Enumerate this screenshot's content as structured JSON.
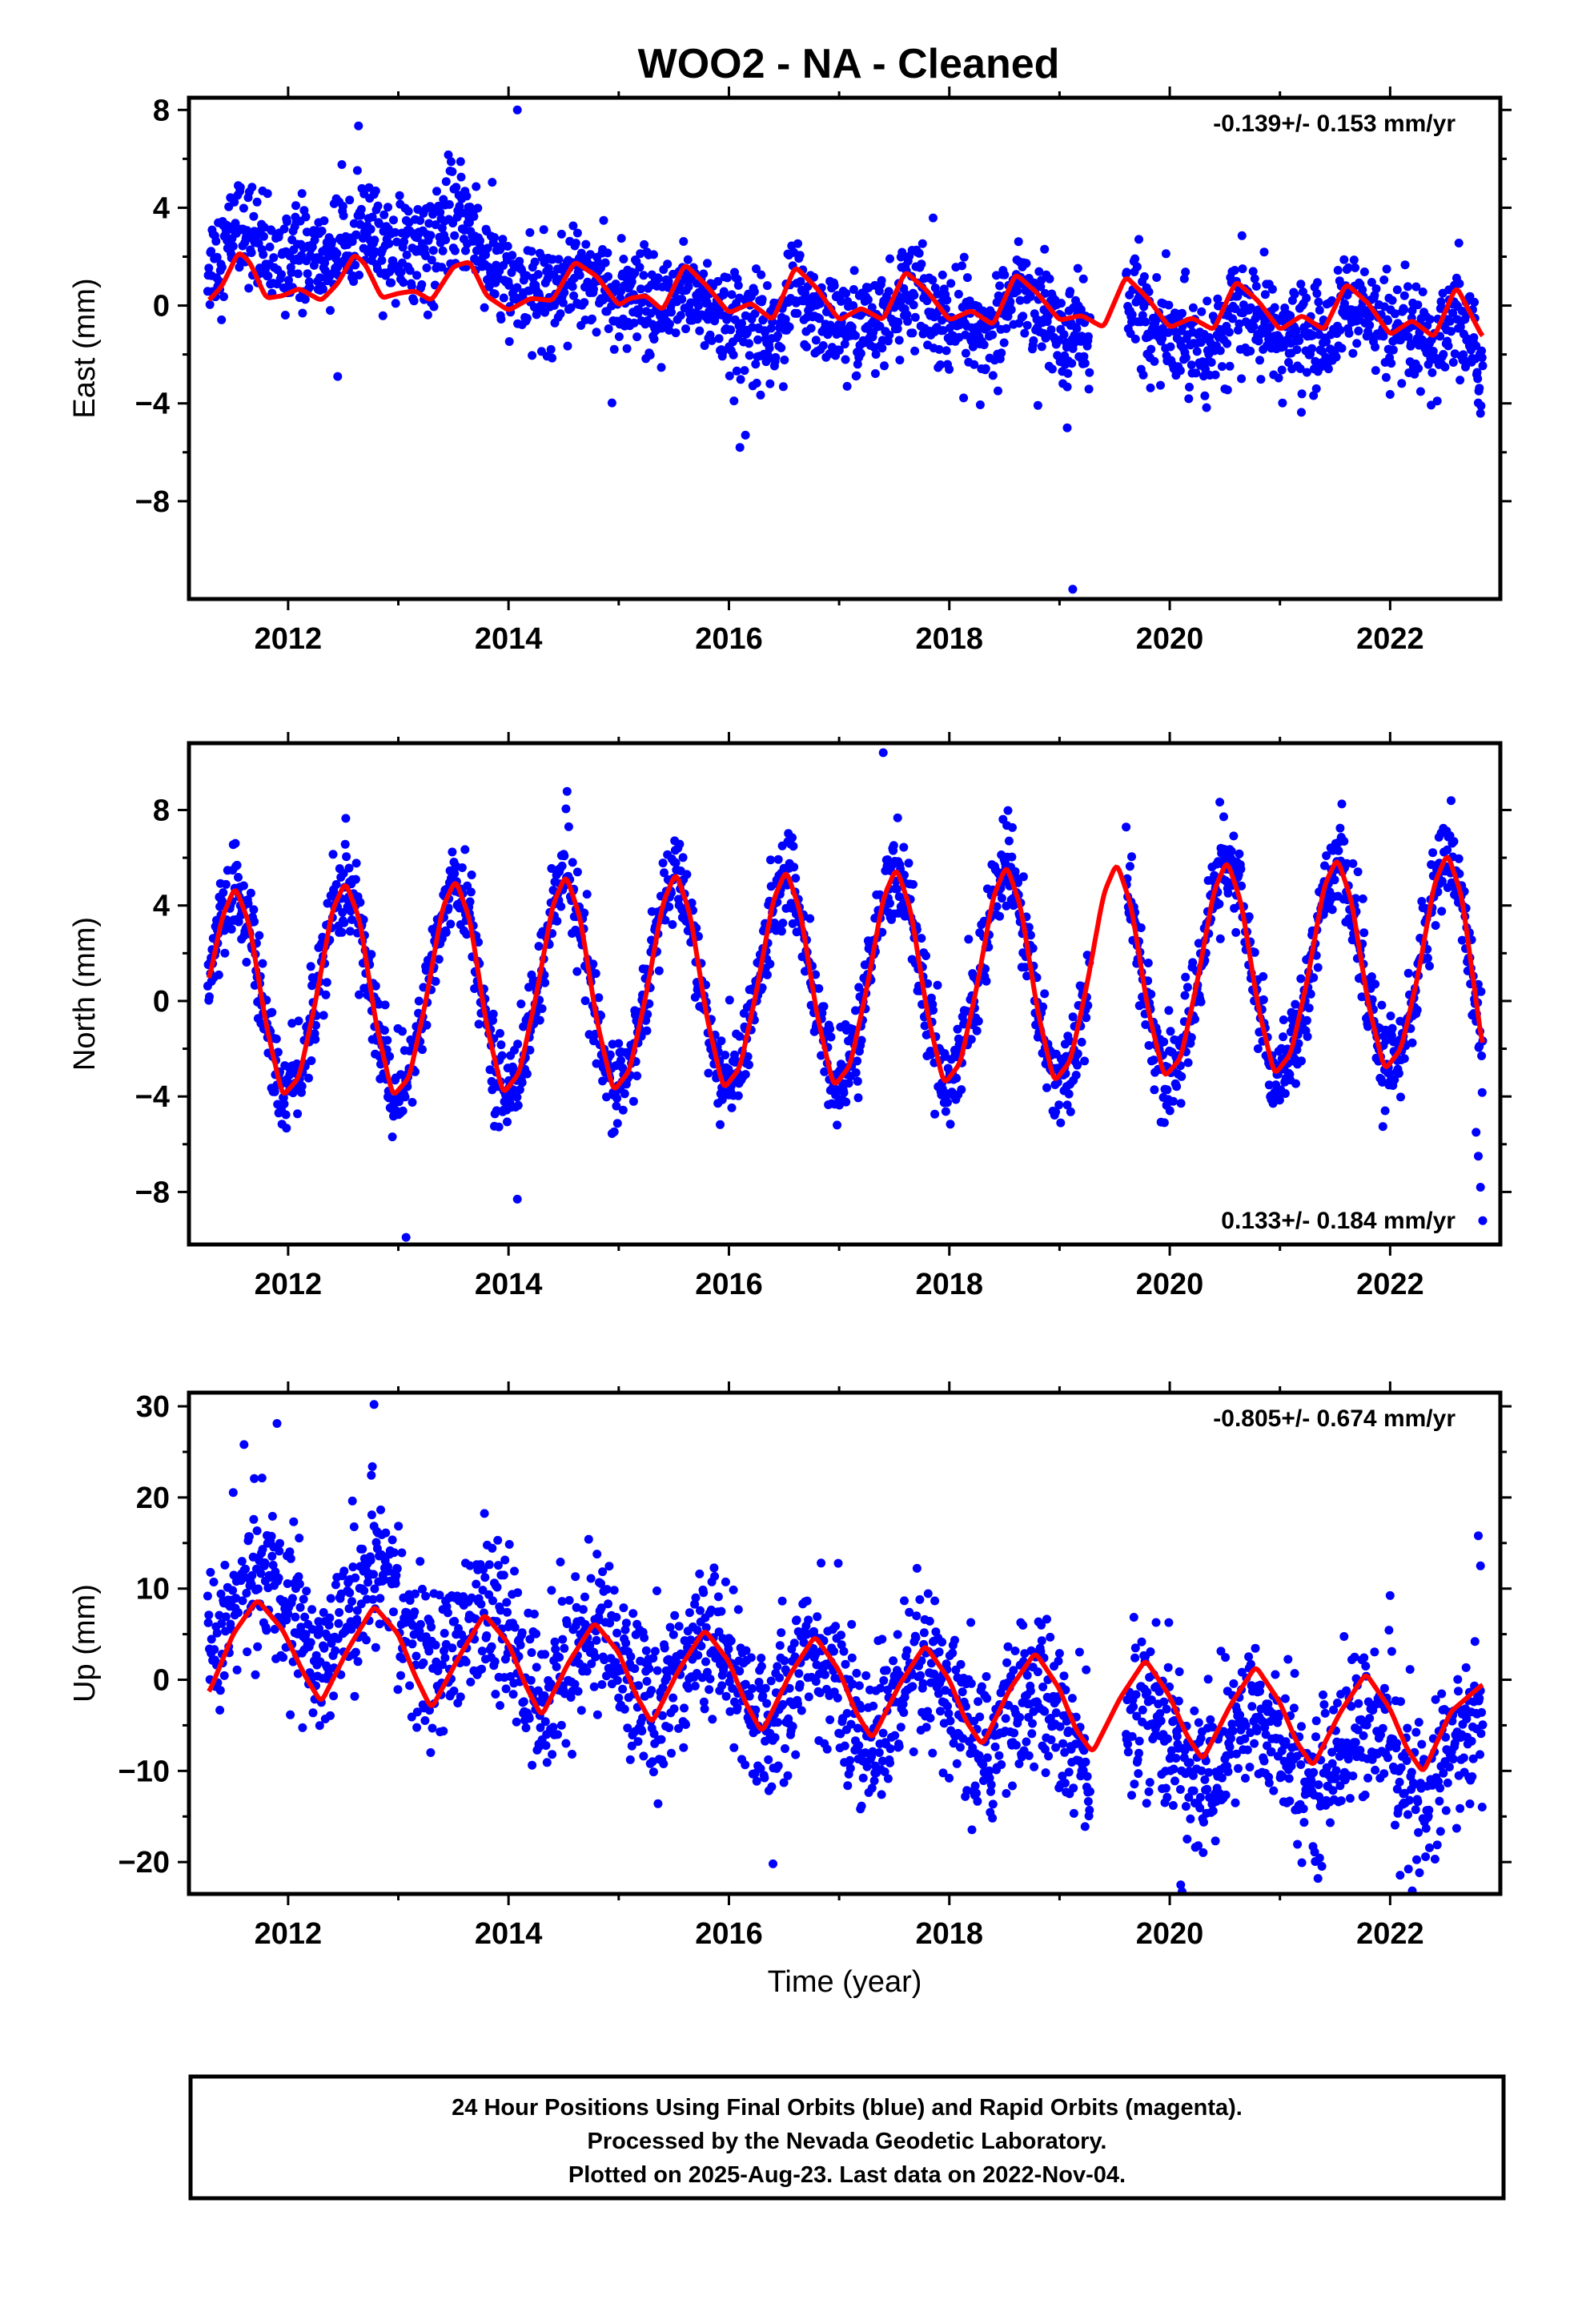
{
  "title": "WOO2  - NA - Cleaned",
  "colors": {
    "points": "#0000ff",
    "model": "#ff0000",
    "frame": "#000000"
  },
  "footer": {
    "line1": "24 Hour Positions Using Final Orbits (blue) and Rapid Orbits (magenta).",
    "line2": "Processed by the Nevada Geodetic Laboratory.",
    "line3": "Plotted on 2025-Aug-23. Last data on 2022-Nov-04."
  },
  "chart_data": [
    {
      "type": "scatter",
      "name": "east-panel",
      "ylabel": "East (mm)",
      "xlabel": "",
      "rate_label": "-0.139+/- 0.153 mm/yr",
      "rate_position": "top-right",
      "xlim": [
        2011.1,
        2023.0
      ],
      "ylim": [
        -12,
        8.5
      ],
      "xticks": [
        2012,
        2014,
        2016,
        2018,
        2020,
        2022
      ],
      "xtick_labels": [
        "2012",
        "2014",
        "2016",
        "2018",
        "2020",
        "2022"
      ],
      "yticks": [
        8,
        4,
        0,
        -4,
        -8
      ],
      "ytick_labels": [
        "8",
        "4",
        "0",
        "−4",
        "−8"
      ],
      "data_start": 2011.27,
      "data_end": 2022.84,
      "gap": [
        2019.28,
        2019.6
      ],
      "series": [
        {
          "name": "",
          "kind": "points",
          "color": "#0000ff",
          "trend": [
            [
              2011.3,
              1.5
            ],
            [
              2012.5,
              1.6
            ],
            [
              2013.5,
              2.3
            ],
            [
              2014.2,
              0.5
            ],
            [
              2015.5,
              -0.5
            ],
            [
              2016.5,
              -0.8
            ],
            [
              2018.0,
              -0.3
            ],
            [
              2019.0,
              -0.6
            ],
            [
              2020.5,
              -0.9
            ],
            [
              2022.0,
              -0.5
            ],
            [
              2022.84,
              -1.5
            ]
          ],
          "scatter_sd": 1.05
        },
        {
          "name": "",
          "kind": "model",
          "color": "#ff0000",
          "x": [
            2011.28,
            2011.4,
            2011.55,
            2011.65,
            2011.8,
            2011.95,
            2012.1,
            2012.3,
            2012.45,
            2012.6,
            2012.7,
            2012.85,
            2013.0,
            2013.15,
            2013.3,
            2013.5,
            2013.65,
            2013.8,
            2014.0,
            2014.2,
            2014.4,
            2014.6,
            2014.8,
            2015.0,
            2015.1,
            2015.25,
            2015.4,
            2015.6,
            2015.8,
            2016.0,
            2016.2,
            2016.4,
            2016.6,
            2016.8,
            2017.0,
            2017.2,
            2017.4,
            2017.6,
            2017.8,
            2018.0,
            2018.2,
            2018.4,
            2018.6,
            2018.8,
            2019.0,
            2019.2,
            2019.4,
            2019.6,
            2019.8,
            2020.0,
            2020.2,
            2020.4,
            2020.6,
            2020.8,
            2021.0,
            2021.2,
            2021.4,
            2021.6,
            2021.8,
            2022.0,
            2022.2,
            2022.4,
            2022.6,
            2022.84
          ],
          "y": [
            0.2,
            0.8,
            2.2,
            1.8,
            0.3,
            0.4,
            0.7,
            0.2,
            0.9,
            2.1,
            1.7,
            0.3,
            0.5,
            0.6,
            0.2,
            1.6,
            1.8,
            0.4,
            -0.2,
            0.3,
            0.2,
            1.8,
            1.2,
            0.0,
            0.3,
            0.4,
            -0.2,
            1.7,
            0.8,
            -0.3,
            0.1,
            -0.6,
            1.6,
            0.7,
            -0.6,
            -0.1,
            -0.6,
            1.4,
            0.6,
            -0.6,
            -0.2,
            -0.8,
            1.3,
            0.5,
            -0.6,
            -0.4,
            -0.9,
            1.2,
            0.3,
            -0.9,
            -0.5,
            -1.0,
            1.0,
            0.2,
            -1.0,
            -0.4,
            -1.0,
            0.9,
            0.1,
            -1.2,
            -0.6,
            -1.3,
            0.8,
            -1.3
          ]
        }
      ],
      "outliers": [
        [
          2014.08,
          8.0
        ],
        [
          2019.12,
          -11.6
        ],
        [
          2019.07,
          -5.0
        ],
        [
          2016.1,
          -5.8
        ],
        [
          2016.15,
          -5.3
        ],
        [
          2012.45,
          -2.9
        ]
      ]
    },
    {
      "type": "scatter",
      "name": "north-panel",
      "ylabel": "North (mm)",
      "xlabel": "",
      "rate_label": "0.133+/- 0.184 mm/yr",
      "rate_position": "bottom-right",
      "xlim": [
        2011.1,
        2023.0
      ],
      "ylim": [
        -10.2,
        10.8
      ],
      "xticks": [
        2012,
        2014,
        2016,
        2018,
        2020,
        2022
      ],
      "xtick_labels": [
        "2012",
        "2014",
        "2016",
        "2018",
        "2020",
        "2022"
      ],
      "yticks": [
        8,
        4,
        0,
        -4,
        -8
      ],
      "ytick_labels": [
        "8",
        "4",
        "0",
        "−4",
        "−8"
      ],
      "data_start": 2011.27,
      "data_end": 2022.84,
      "gap": [
        2019.28,
        2019.6
      ],
      "series": [
        {
          "name": "",
          "kind": "points",
          "color": "#0000ff",
          "trend": [
            [
              2011.3,
              0.0
            ],
            [
              2022.84,
              0.0
            ]
          ],
          "scatter_sd": 0.95
        },
        {
          "name": "",
          "kind": "model",
          "color": "#ff0000",
          "x": [
            2011.28,
            2011.4,
            2011.52,
            2011.65,
            2011.8,
            2011.95,
            2012.1,
            2012.25,
            2012.4,
            2012.52,
            2012.65,
            2012.8,
            2012.95,
            2013.1,
            2013.25,
            2013.4,
            2013.52,
            2013.65,
            2013.8,
            2013.95,
            2014.1,
            2014.25,
            2014.4,
            2014.52,
            2014.65,
            2014.8,
            2014.95,
            2015.1,
            2015.25,
            2015.4,
            2015.52,
            2015.65,
            2015.8,
            2015.95,
            2016.1,
            2016.25,
            2016.4,
            2016.52,
            2016.65,
            2016.8,
            2016.95,
            2017.1,
            2017.25,
            2017.4,
            2017.52,
            2017.65,
            2017.8,
            2017.95,
            2018.1,
            2018.25,
            2018.4,
            2018.52,
            2018.65,
            2018.8,
            2018.95,
            2019.1,
            2019.25,
            2019.4,
            2019.52,
            2019.65,
            2019.8,
            2019.95,
            2020.1,
            2020.25,
            2020.4,
            2020.52,
            2020.65,
            2020.8,
            2020.95,
            2021.1,
            2021.25,
            2021.4,
            2021.52,
            2021.65,
            2021.8,
            2021.95,
            2022.1,
            2022.25,
            2022.4,
            2022.52,
            2022.65,
            2022.84
          ],
          "y": [
            0.8,
            3.5,
            4.8,
            3.2,
            -1.0,
            -4.0,
            -3.2,
            0.0,
            3.8,
            5.0,
            3.4,
            -1.0,
            -4.0,
            -3.2,
            0.0,
            3.9,
            5.1,
            3.4,
            -1.0,
            -3.9,
            -3.0,
            0.2,
            4.0,
            5.3,
            3.5,
            -0.8,
            -3.8,
            -2.9,
            0.3,
            4.1,
            5.4,
            3.6,
            -0.7,
            -3.7,
            -2.8,
            0.4,
            4.2,
            5.5,
            3.7,
            -0.6,
            -3.6,
            -2.7,
            0.5,
            4.3,
            5.6,
            3.8,
            -0.5,
            -3.5,
            -2.6,
            0.6,
            4.4,
            5.7,
            3.9,
            -0.4,
            -3.4,
            -2.5,
            0.7,
            4.5,
            5.8,
            4.0,
            -0.3,
            -3.2,
            -2.4,
            0.8,
            4.6,
            5.9,
            4.1,
            -0.2,
            -3.1,
            -2.2,
            0.9,
            4.8,
            6.0,
            4.2,
            -0.1,
            -2.9,
            -2.0,
            1.0,
            4.9,
            6.2,
            4.4,
            -2.0
          ]
        }
      ],
      "outliers": [
        [
          2022.78,
          -5.5
        ],
        [
          2022.8,
          -6.5
        ],
        [
          2022.82,
          -7.8
        ],
        [
          2022.84,
          -9.2
        ],
        [
          2014.08,
          -8.3
        ],
        [
          2013.07,
          -9.9
        ],
        [
          2017.4,
          10.4
        ]
      ]
    },
    {
      "type": "scatter",
      "name": "up-panel",
      "ylabel": "Up (mm)",
      "xlabel": "Time (year)",
      "rate_label": "-0.805+/- 0.674 mm/yr",
      "rate_position": "top-right",
      "xlim": [
        2011.1,
        2023.0
      ],
      "ylim": [
        -23.5,
        31.5
      ],
      "xticks": [
        2012,
        2014,
        2016,
        2018,
        2020,
        2022
      ],
      "xtick_labels": [
        "2012",
        "2014",
        "2016",
        "2018",
        "2020",
        "2022"
      ],
      "yticks": [
        30,
        20,
        10,
        0,
        -10,
        -20
      ],
      "ytick_labels": [
        "30",
        "20",
        "10",
        "0",
        "−10",
        "−20"
      ],
      "data_start": 2011.27,
      "data_end": 2022.84,
      "gap": [
        2019.28,
        2019.6
      ],
      "series": [
        {
          "name": "",
          "kind": "points",
          "color": "#0000ff",
          "trend": [
            [
              2011.3,
              4.0
            ],
            [
              2012.8,
              5.0
            ],
            [
              2014.0,
              1.0
            ],
            [
              2016.0,
              0.0
            ],
            [
              2018.0,
              -2.5
            ],
            [
              2020.0,
              -4.5
            ],
            [
              2022.84,
              -4.5
            ]
          ],
          "scatter_sd": 4.3
        },
        {
          "name": "",
          "kind": "model",
          "color": "#ff0000",
          "x": [
            2011.28,
            2011.5,
            2011.72,
            2011.95,
            2012.15,
            2012.3,
            2012.55,
            2012.78,
            2013.0,
            2013.15,
            2013.3,
            2013.55,
            2013.78,
            2014.0,
            2014.15,
            2014.3,
            2014.55,
            2014.78,
            2015.0,
            2015.15,
            2015.3,
            2015.55,
            2015.78,
            2016.0,
            2016.15,
            2016.3,
            2016.55,
            2016.78,
            2017.0,
            2017.15,
            2017.3,
            2017.55,
            2017.78,
            2018.0,
            2018.15,
            2018.3,
            2018.55,
            2018.78,
            2019.0,
            2019.15,
            2019.3,
            2019.55,
            2019.78,
            2020.0,
            2020.15,
            2020.3,
            2020.55,
            2020.78,
            2021.0,
            2021.15,
            2021.3,
            2021.55,
            2021.78,
            2022.0,
            2022.15,
            2022.3,
            2022.55,
            2022.84
          ],
          "y": [
            -1.5,
            5.0,
            8.8,
            5.5,
            0.5,
            -2.5,
            3.5,
            8.1,
            5.0,
            0.5,
            -3.2,
            2.5,
            7.2,
            4.0,
            -0.5,
            -4.0,
            2.0,
            6.3,
            3.0,
            -1.5,
            -4.8,
            1.2,
            5.5,
            2.0,
            -2.5,
            -5.8,
            0.5,
            4.8,
            1.0,
            -3.5,
            -6.5,
            -0.5,
            3.8,
            0.0,
            -4.5,
            -7.2,
            -1.0,
            3.0,
            -1.0,
            -5.5,
            -8.0,
            -2.0,
            2.2,
            -1.8,
            -6.0,
            -8.8,
            -2.8,
            1.5,
            -2.5,
            -6.8,
            -9.5,
            -3.5,
            0.7,
            -3.2,
            -7.5,
            -10.2,
            -3.5,
            -0.5
          ]
        }
      ],
      "outliers": [
        [
          2012.78,
          30.2
        ],
        [
          2016.4,
          -20.2
        ],
        [
          2020.1,
          -22.5
        ],
        [
          2022.8,
          15.8
        ],
        [
          2022.82,
          12.5
        ],
        [
          2011.6,
          25.8
        ]
      ]
    }
  ]
}
